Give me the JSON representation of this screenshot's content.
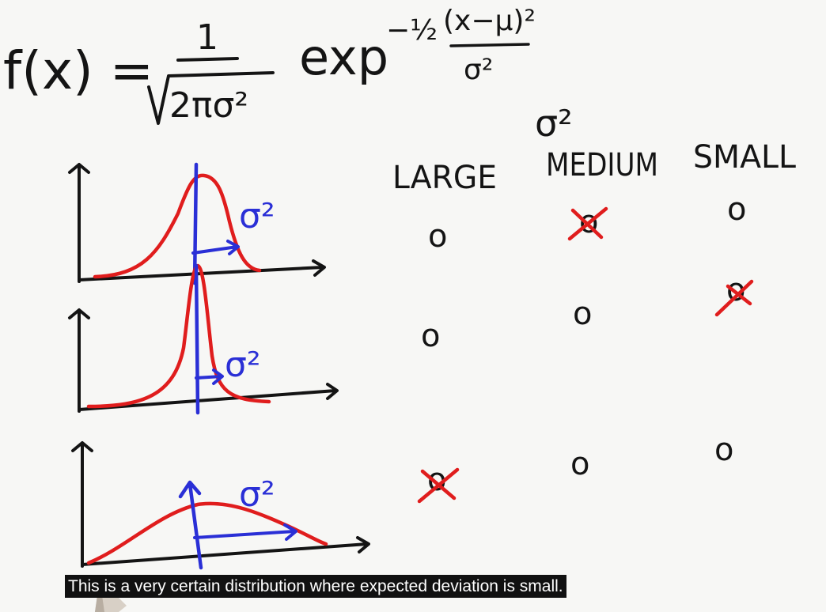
{
  "formula": {
    "lhs": "f(x) =",
    "numerator": "1",
    "denominator": "2πσ²",
    "exp": "exp",
    "exp_coeff": "−½",
    "exp_numerator": "(x−μ)²",
    "exp_denominator": "σ²"
  },
  "variance_header": "σ²",
  "columns": [
    "LARGE",
    "MEDIUM",
    "SMALL"
  ],
  "rows": [
    {
      "label": "σ²",
      "selected": "MEDIUM"
    },
    {
      "label": "σ²",
      "selected": "SMALL"
    },
    {
      "label": "σ²",
      "selected": "LARGE"
    }
  ],
  "option_symbol": "o",
  "caption": "This is a very certain distribution where expected deviation is small.",
  "colors": {
    "ink": "#141414",
    "red": "#e01d1d",
    "blue": "#2a2fd6",
    "board": "#f7f7f5",
    "caption_bg": "#111111"
  }
}
